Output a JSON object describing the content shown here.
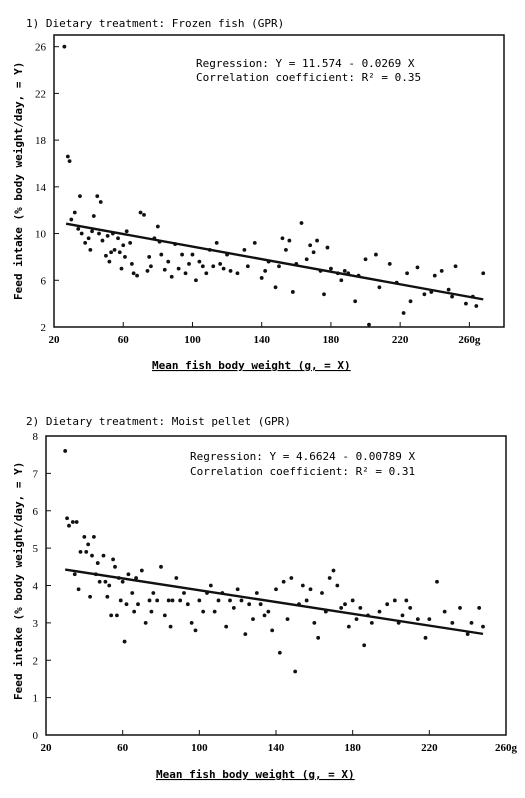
{
  "chart_data": [
    {
      "type": "scatter",
      "title": "1) Dietary treatment: Frozen fish (GPR)",
      "xlabel": "Mean fish body weight (g, = X)",
      "ylabel": "Feed intake (% body weight/day, = Y)",
      "xlim": [
        20,
        280
      ],
      "ylim": [
        2,
        27
      ],
      "x_ticks": [
        "20",
        "60",
        "100",
        "140",
        "180",
        "220",
        "260g"
      ],
      "x_tick_values": [
        20,
        60,
        100,
        140,
        180,
        220,
        260
      ],
      "y_ticks": [
        "2",
        "6",
        "10",
        "14",
        "18",
        "22",
        "26"
      ],
      "y_tick_values": [
        2,
        6,
        10,
        14,
        18,
        22,
        26
      ],
      "annotations": [
        "Regression: Y = 11.574 - 0.0269 X",
        "Correlation coefficient: R² = 0.35"
      ],
      "regression": {
        "intercept": 11.574,
        "slope": -0.0269,
        "x_range": [
          27,
          268
        ]
      },
      "grid": false,
      "points": [
        [
          26,
          26.0
        ],
        [
          28,
          16.6
        ],
        [
          29,
          16.2
        ],
        [
          30,
          11.2
        ],
        [
          32,
          11.8
        ],
        [
          34,
          10.4
        ],
        [
          35,
          13.2
        ],
        [
          36,
          10.0
        ],
        [
          38,
          9.2
        ],
        [
          40,
          9.6
        ],
        [
          41,
          8.6
        ],
        [
          42,
          10.2
        ],
        [
          43,
          11.5
        ],
        [
          45,
          13.2
        ],
        [
          46,
          10.0
        ],
        [
          47,
          12.7
        ],
        [
          48,
          9.4
        ],
        [
          50,
          8.1
        ],
        [
          51,
          9.8
        ],
        [
          52,
          7.6
        ],
        [
          53,
          8.4
        ],
        [
          54,
          10.0
        ],
        [
          55,
          8.6
        ],
        [
          57,
          9.6
        ],
        [
          58,
          8.4
        ],
        [
          59,
          7.0
        ],
        [
          60,
          9.0
        ],
        [
          61,
          8.0
        ],
        [
          62,
          10.2
        ],
        [
          64,
          9.2
        ],
        [
          65,
          7.4
        ],
        [
          66,
          6.6
        ],
        [
          68,
          6.4
        ],
        [
          70,
          11.8
        ],
        [
          72,
          11.6
        ],
        [
          74,
          6.8
        ],
        [
          75,
          8.0
        ],
        [
          76,
          7.2
        ],
        [
          78,
          9.6
        ],
        [
          80,
          10.6
        ],
        [
          81,
          9.3
        ],
        [
          82,
          8.2
        ],
        [
          84,
          6.9
        ],
        [
          86,
          7.6
        ],
        [
          88,
          6.3
        ],
        [
          90,
          9.1
        ],
        [
          92,
          7.0
        ],
        [
          94,
          8.2
        ],
        [
          96,
          6.6
        ],
        [
          98,
          7.4
        ],
        [
          100,
          8.2
        ],
        [
          102,
          6.0
        ],
        [
          104,
          7.6
        ],
        [
          106,
          7.2
        ],
        [
          108,
          6.6
        ],
        [
          110,
          8.6
        ],
        [
          112,
          7.2
        ],
        [
          114,
          9.2
        ],
        [
          116,
          7.4
        ],
        [
          118,
          7.0
        ],
        [
          120,
          8.2
        ],
        [
          122,
          6.8
        ],
        [
          126,
          6.6
        ],
        [
          130,
          8.6
        ],
        [
          132,
          7.2
        ],
        [
          136,
          9.2
        ],
        [
          140,
          6.2
        ],
        [
          142,
          6.8
        ],
        [
          144,
          7.6
        ],
        [
          148,
          5.4
        ],
        [
          150,
          7.2
        ],
        [
          152,
          9.6
        ],
        [
          154,
          8.6
        ],
        [
          156,
          9.4
        ],
        [
          158,
          5.0
        ],
        [
          160,
          7.4
        ],
        [
          163,
          10.9
        ],
        [
          166,
          7.8
        ],
        [
          168,
          9.0
        ],
        [
          170,
          8.4
        ],
        [
          172,
          9.4
        ],
        [
          174,
          6.8
        ],
        [
          176,
          4.8
        ],
        [
          178,
          8.8
        ],
        [
          180,
          7.0
        ],
        [
          184,
          6.6
        ],
        [
          186,
          6.0
        ],
        [
          188,
          6.8
        ],
        [
          190,
          6.6
        ],
        [
          194,
          4.2
        ],
        [
          196,
          6.4
        ],
        [
          200,
          7.8
        ],
        [
          202,
          2.2
        ],
        [
          206,
          8.2
        ],
        [
          208,
          5.4
        ],
        [
          214,
          7.4
        ],
        [
          218,
          5.8
        ],
        [
          222,
          3.2
        ],
        [
          224,
          6.6
        ],
        [
          226,
          4.2
        ],
        [
          230,
          7.1
        ],
        [
          234,
          4.8
        ],
        [
          238,
          5.0
        ],
        [
          240,
          6.4
        ],
        [
          244,
          6.8
        ],
        [
          248,
          5.2
        ],
        [
          250,
          4.6
        ],
        [
          252,
          7.2
        ],
        [
          258,
          4.0
        ],
        [
          262,
          4.6
        ],
        [
          264,
          3.8
        ],
        [
          268,
          6.6
        ]
      ]
    },
    {
      "type": "scatter",
      "title": "2) Dietary treatment: Moist pellet (GPR)",
      "xlabel": "Mean fish body weight (g, = X)",
      "ylabel": "Feed intake (% body weight/day, = Y)",
      "xlim": [
        20,
        260
      ],
      "ylim": [
        0,
        8
      ],
      "x_ticks": [
        "20",
        "60",
        "100",
        "140",
        "180",
        "220",
        "260g"
      ],
      "x_tick_values": [
        20,
        60,
        100,
        140,
        180,
        220,
        260
      ],
      "y_ticks": [
        "0",
        "1",
        "2",
        "3",
        "4",
        "5",
        "6",
        "7",
        "8"
      ],
      "y_tick_values": [
        0,
        1,
        2,
        3,
        4,
        5,
        6,
        7,
        8
      ],
      "annotations": [
        "Regression: Y = 4.6624 - 0.00789 X",
        "Correlation coefficient: R² = 0.31"
      ],
      "regression": {
        "intercept": 4.6624,
        "slope": -0.00789,
        "x_range": [
          30,
          248
        ]
      },
      "grid": false,
      "points": [
        [
          30,
          7.6
        ],
        [
          31,
          5.8
        ],
        [
          32,
          5.6
        ],
        [
          34,
          5.7
        ],
        [
          35,
          4.3
        ],
        [
          36,
          5.7
        ],
        [
          37,
          3.9
        ],
        [
          38,
          4.9
        ],
        [
          40,
          5.3
        ],
        [
          41,
          4.9
        ],
        [
          42,
          5.1
        ],
        [
          43,
          3.7
        ],
        [
          44,
          4.8
        ],
        [
          45,
          5.3
        ],
        [
          46,
          4.3
        ],
        [
          47,
          4.6
        ],
        [
          48,
          4.1
        ],
        [
          50,
          4.8
        ],
        [
          51,
          4.1
        ],
        [
          52,
          3.7
        ],
        [
          53,
          4.0
        ],
        [
          54,
          3.2
        ],
        [
          55,
          4.7
        ],
        [
          56,
          4.5
        ],
        [
          57,
          3.2
        ],
        [
          58,
          4.2
        ],
        [
          59,
          3.6
        ],
        [
          60,
          4.1
        ],
        [
          61,
          2.5
        ],
        [
          62,
          3.5
        ],
        [
          63,
          4.3
        ],
        [
          65,
          3.8
        ],
        [
          66,
          3.3
        ],
        [
          67,
          4.2
        ],
        [
          68,
          3.5
        ],
        [
          70,
          4.4
        ],
        [
          72,
          3.0
        ],
        [
          74,
          3.6
        ],
        [
          75,
          3.3
        ],
        [
          76,
          3.8
        ],
        [
          78,
          3.6
        ],
        [
          80,
          4.5
        ],
        [
          82,
          3.2
        ],
        [
          84,
          3.6
        ],
        [
          85,
          2.9
        ],
        [
          86,
          3.6
        ],
        [
          88,
          4.2
        ],
        [
          90,
          3.6
        ],
        [
          92,
          3.8
        ],
        [
          94,
          3.5
        ],
        [
          96,
          3.0
        ],
        [
          98,
          2.8
        ],
        [
          100,
          3.6
        ],
        [
          102,
          3.3
        ],
        [
          104,
          3.8
        ],
        [
          106,
          4.0
        ],
        [
          108,
          3.3
        ],
        [
          110,
          3.6
        ],
        [
          112,
          3.8
        ],
        [
          114,
          2.9
        ],
        [
          116,
          3.6
        ],
        [
          118,
          3.4
        ],
        [
          120,
          3.9
        ],
        [
          122,
          3.6
        ],
        [
          124,
          2.7
        ],
        [
          126,
          3.5
        ],
        [
          128,
          3.1
        ],
        [
          130,
          3.8
        ],
        [
          132,
          3.5
        ],
        [
          134,
          3.2
        ],
        [
          136,
          3.3
        ],
        [
          138,
          2.8
        ],
        [
          140,
          3.9
        ],
        [
          142,
          2.2
        ],
        [
          144,
          4.1
        ],
        [
          146,
          3.1
        ],
        [
          148,
          4.2
        ],
        [
          150,
          1.7
        ],
        [
          152,
          3.5
        ],
        [
          154,
          4.0
        ],
        [
          156,
          3.6
        ],
        [
          158,
          3.9
        ],
        [
          160,
          3.0
        ],
        [
          162,
          2.6
        ],
        [
          164,
          3.8
        ],
        [
          166,
          3.3
        ],
        [
          168,
          4.2
        ],
        [
          170,
          4.4
        ],
        [
          172,
          4.0
        ],
        [
          174,
          3.4
        ],
        [
          176,
          3.5
        ],
        [
          178,
          2.9
        ],
        [
          180,
          3.6
        ],
        [
          182,
          3.1
        ],
        [
          184,
          3.4
        ],
        [
          186,
          2.4
        ],
        [
          188,
          3.2
        ],
        [
          190,
          3.0
        ],
        [
          194,
          3.3
        ],
        [
          198,
          3.5
        ],
        [
          202,
          3.6
        ],
        [
          204,
          3.0
        ],
        [
          206,
          3.2
        ],
        [
          208,
          3.6
        ],
        [
          210,
          3.4
        ],
        [
          214,
          3.1
        ],
        [
          218,
          2.6
        ],
        [
          220,
          3.1
        ],
        [
          224,
          4.1
        ],
        [
          228,
          3.3
        ],
        [
          232,
          3.0
        ],
        [
          236,
          3.4
        ],
        [
          240,
          2.7
        ],
        [
          242,
          3.0
        ],
        [
          246,
          3.4
        ],
        [
          248,
          2.9
        ]
      ]
    }
  ]
}
